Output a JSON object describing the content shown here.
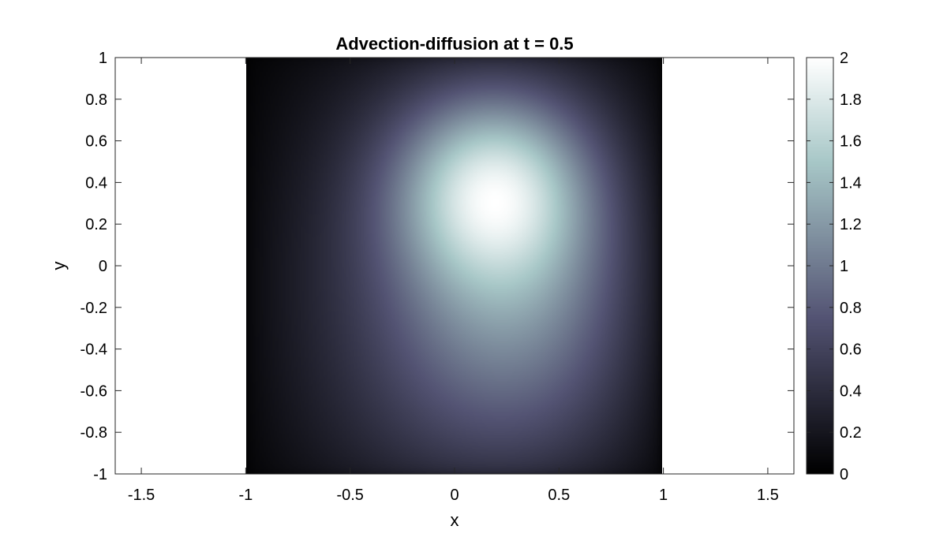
{
  "chart_data": {
    "type": "heatmap",
    "title": "Advection-diffusion at t = 0.5",
    "xlabel": "x",
    "ylabel": "y",
    "xlim": [
      -1.625,
      1.625
    ],
    "ylim": [
      -1,
      1
    ],
    "x_ticks": [
      "-1.5",
      "-1",
      "-0.5",
      "0",
      "0.5",
      "1",
      "1.5"
    ],
    "y_ticks": [
      "1",
      "0.8",
      "0.6",
      "0.4",
      "0.2",
      "0",
      "-0.2",
      "-0.4",
      "-0.6",
      "-0.8",
      "-1"
    ],
    "field_domain": {
      "x": [
        -1,
        1
      ],
      "y": [
        -1,
        1
      ]
    },
    "field_peak": {
      "x": 0.2,
      "y": 0.4,
      "value": 2.0
    },
    "colormap": "bone",
    "colorbar": {
      "range": [
        0,
        2
      ],
      "ticks": [
        "2",
        "1.8",
        "1.6",
        "1.4",
        "1.2",
        "1",
        "0.8",
        "0.6",
        "0.4",
        "0.2",
        "0"
      ]
    },
    "grid": false
  }
}
